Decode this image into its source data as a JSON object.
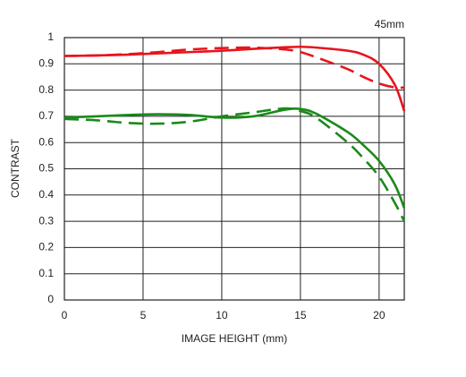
{
  "chart_data": {
    "type": "line",
    "title": "45mm",
    "x_label": "IMAGE HEIGHT (mm)",
    "y_label": "CONTRAST",
    "x": [
      0,
      2,
      4,
      6,
      8,
      10,
      12,
      14,
      15,
      16,
      18,
      19,
      20,
      21,
      21.6
    ],
    "series": [
      {
        "color": "#e8141c",
        "dashed": false,
        "values": [
          0.93,
          0.932,
          0.935,
          0.94,
          0.945,
          0.95,
          0.957,
          0.963,
          0.965,
          0.962,
          0.95,
          0.935,
          0.9,
          0.82,
          0.72
        ]
      },
      {
        "color": "#e8141c",
        "dashed": true,
        "values": [
          0.93,
          0.932,
          0.937,
          0.945,
          0.955,
          0.96,
          0.962,
          0.955,
          0.945,
          0.925,
          0.88,
          0.85,
          0.825,
          0.81,
          0.81
        ]
      },
      {
        "color": "#1a8a1a",
        "dashed": false,
        "values": [
          0.695,
          0.7,
          0.705,
          0.708,
          0.705,
          0.695,
          0.7,
          0.725,
          0.728,
          0.71,
          0.64,
          0.59,
          0.53,
          0.44,
          0.35
        ]
      },
      {
        "color": "#1a8a1a",
        "dashed": true,
        "values": [
          0.69,
          0.685,
          0.675,
          0.672,
          0.68,
          0.7,
          0.715,
          0.73,
          0.72,
          0.695,
          0.6,
          0.54,
          0.47,
          0.37,
          0.3
        ]
      }
    ],
    "xlim": [
      0,
      21.6
    ],
    "xticks": [
      0,
      5,
      10,
      15,
      20
    ],
    "ylim": [
      0,
      1
    ],
    "yticks": [
      0,
      0.1,
      0.2,
      0.3,
      0.4,
      0.5,
      0.6,
      0.7,
      0.8,
      0.9,
      1
    ],
    "grid": true
  }
}
